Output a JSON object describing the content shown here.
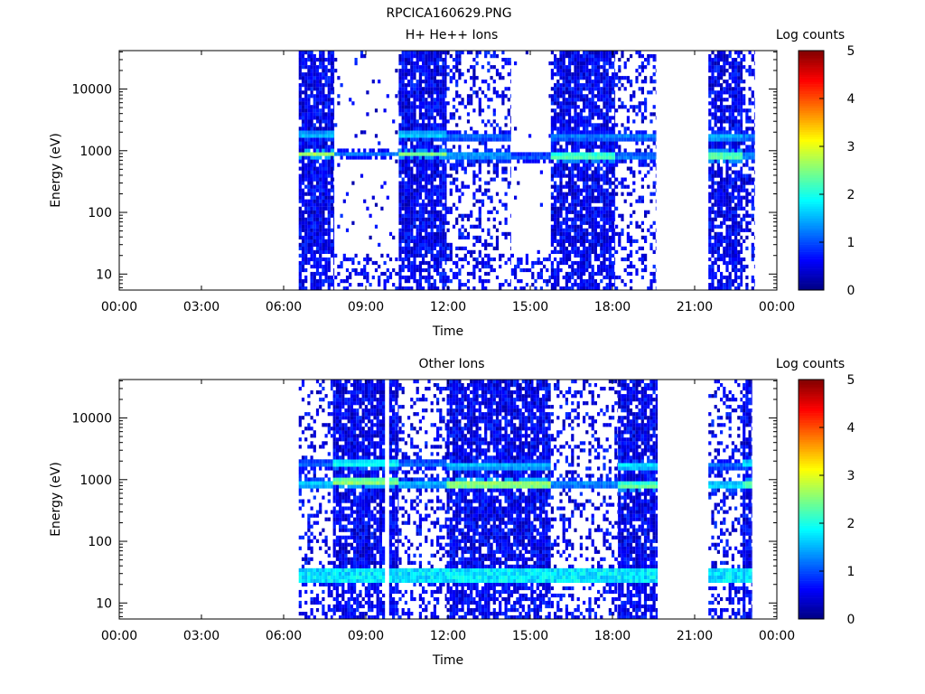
{
  "figure": {
    "title": "RPCICA160629.PNG"
  },
  "chart_data": [
    {
      "type": "heatmap",
      "title": "H+ He++ Ions",
      "xlabel": "Time",
      "ylabel": "Energy (eV)",
      "x_ticks": [
        "00:00",
        "03:00",
        "06:00",
        "09:00",
        "12:00",
        "15:00",
        "18:00",
        "21:00",
        "00:00"
      ],
      "x_range_hours": [
        0,
        24
      ],
      "y_scale": "log",
      "y_range": [
        5.5,
        42000
      ],
      "y_ticks": [
        10,
        100,
        1000,
        10000
      ],
      "y_tick_labels": [
        "10",
        "100",
        "1000",
        "10000"
      ],
      "colorbar": {
        "label": "Log counts",
        "range": [
          0,
          5
        ],
        "ticks": [
          "0",
          "1",
          "2",
          "3",
          "4",
          "5"
        ]
      },
      "grid": false,
      "segments": [
        {
          "start": 6.55,
          "end": 7.85,
          "density": 0.9,
          "bands": [
            [
              1800,
              1.6
            ],
            [
              880,
              2.7
            ]
          ]
        },
        {
          "start": 7.85,
          "end": 10.2,
          "density": 0.05,
          "bands": [
            [
              880,
              1.2
            ]
          ]
        },
        {
          "start": 10.2,
          "end": 11.95,
          "density": 0.9,
          "bands": [
            [
              1800,
              1.7
            ],
            [
              880,
              2.5
            ]
          ]
        },
        {
          "start": 11.95,
          "end": 14.3,
          "density": 0.3,
          "bands": [
            [
              1700,
              1.2
            ],
            [
              840,
              1.5
            ]
          ]
        },
        {
          "start": 14.3,
          "end": 15.75,
          "density": 0.02,
          "bands": [
            [
              800,
              1.1
            ]
          ]
        },
        {
          "start": 15.75,
          "end": 18.1,
          "density": 0.85,
          "bands": [
            [
              1700,
              1.3
            ],
            [
              800,
              2.3
            ]
          ]
        },
        {
          "start": 18.1,
          "end": 19.6,
          "density": 0.3,
          "bands": [
            [
              1700,
              1.3
            ],
            [
              800,
              1.3
            ]
          ]
        },
        {
          "start": 21.5,
          "end": 22.75,
          "density": 0.85,
          "bands": [
            [
              1700,
              1.6
            ],
            [
              820,
              2.4
            ]
          ]
        },
        {
          "start": 22.75,
          "end": 23.2,
          "density": 0.45,
          "bands": [
            [
              1700,
              1.3
            ],
            [
              820,
              1.4
            ]
          ]
        }
      ]
    },
    {
      "type": "heatmap",
      "title": "Other Ions",
      "xlabel": "Time",
      "ylabel": "Energy (eV)",
      "x_ticks": [
        "00:00",
        "03:00",
        "06:00",
        "09:00",
        "12:00",
        "15:00",
        "18:00",
        "21:00",
        "00:00"
      ],
      "x_range_hours": [
        0,
        24
      ],
      "y_scale": "log",
      "y_range": [
        5.5,
        42000
      ],
      "y_ticks": [
        10,
        100,
        1000,
        10000
      ],
      "y_tick_labels": [
        "10",
        "100",
        "1000",
        "10000"
      ],
      "colorbar": {
        "label": "Log counts",
        "range": [
          0,
          5
        ],
        "ticks": [
          "0",
          "1",
          "2",
          "3",
          "4",
          "5"
        ]
      },
      "grid": false,
      "low_energy_band": {
        "from_ev": 20,
        "to_ev": 36,
        "level": 1.8
      },
      "segments": [
        {
          "start": 6.55,
          "end": 7.8,
          "density": 0.3,
          "bands": [
            [
              1800,
              1.2
            ],
            [
              850,
              1.7
            ]
          ]
        },
        {
          "start": 7.8,
          "end": 9.7,
          "density": 0.85,
          "bands": [
            [
              1800,
              2.0
            ],
            [
              900,
              2.6
            ]
          ]
        },
        {
          "start": 9.85,
          "end": 10.2,
          "density": 0.85,
          "bands": [
            [
              1800,
              2.0
            ],
            [
              900,
              2.5
            ]
          ]
        },
        {
          "start": 10.2,
          "end": 11.95,
          "density": 0.3,
          "bands": [
            [
              1800,
              1.2
            ],
            [
              850,
              1.6
            ]
          ]
        },
        {
          "start": 11.95,
          "end": 15.75,
          "density": 0.85,
          "bands": [
            [
              1700,
              1.6
            ],
            [
              850,
              2.7
            ]
          ]
        },
        {
          "start": 15.75,
          "end": 18.2,
          "density": 0.3,
          "bands": [
            [
              850,
              1.4
            ]
          ]
        },
        {
          "start": 18.2,
          "end": 19.65,
          "density": 0.85,
          "bands": [
            [
              1700,
              1.8
            ],
            [
              780,
              2.4
            ]
          ]
        },
        {
          "start": 21.5,
          "end": 22.75,
          "density": 0.3,
          "bands": [
            [
              1700,
              1.2
            ],
            [
              800,
              1.8
            ]
          ]
        },
        {
          "start": 22.75,
          "end": 23.1,
          "density": 0.85,
          "bands": [
            [
              1800,
              1.8
            ],
            [
              850,
              2.4
            ]
          ]
        }
      ]
    }
  ]
}
